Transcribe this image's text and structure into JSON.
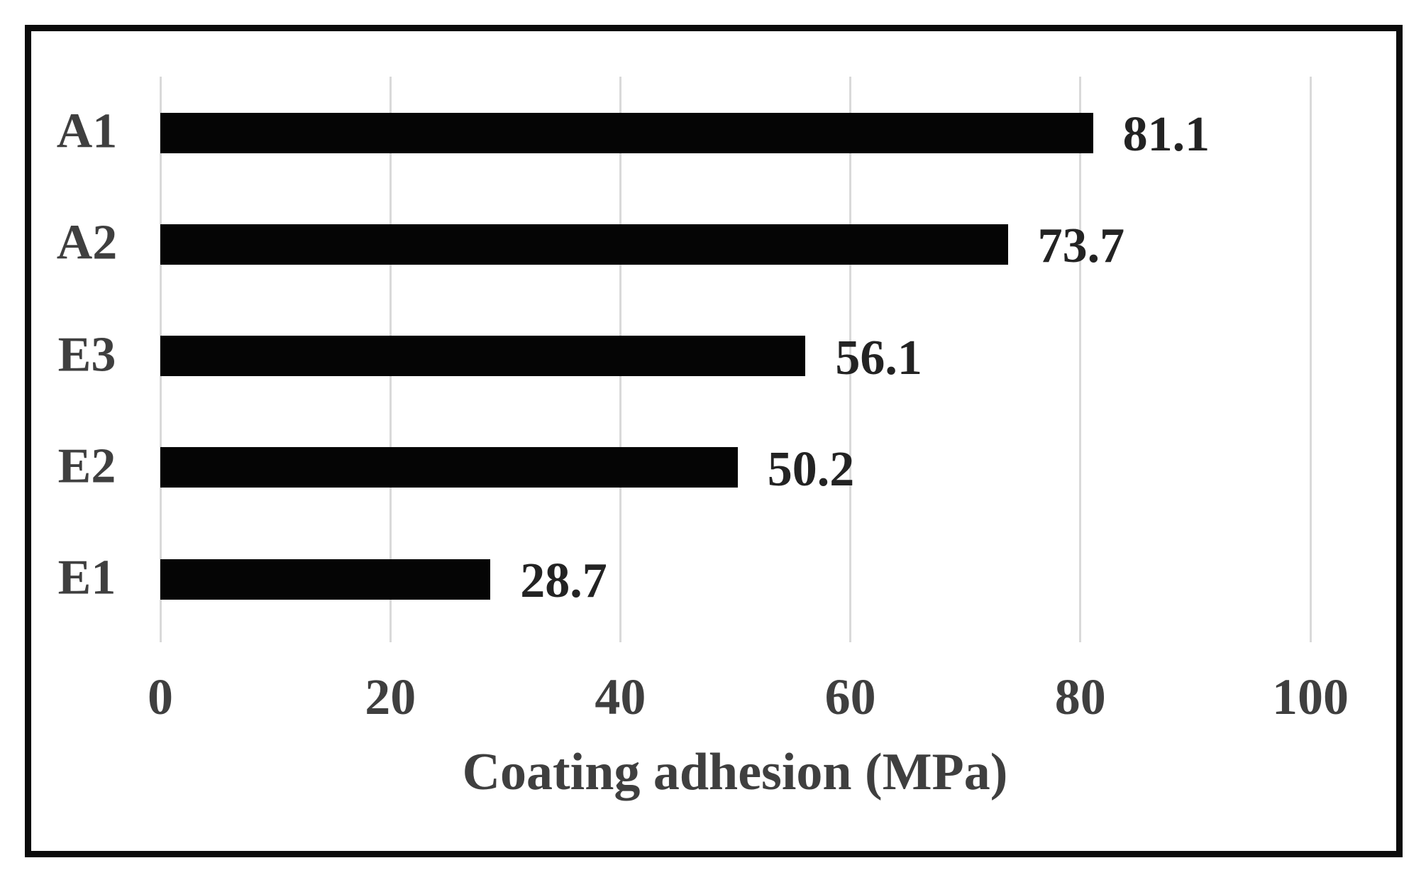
{
  "chart_data": {
    "type": "bar",
    "orientation": "horizontal",
    "title": "",
    "categories": [
      "A1",
      "A2",
      "E3",
      "E2",
      "E1"
    ],
    "values": [
      81.1,
      73.7,
      56.1,
      50.2,
      28.7
    ],
    "value_labels": [
      "81.1",
      "73.7",
      "56.1",
      "50.2",
      "28.7"
    ],
    "xlabel": "Coating adhesion (MPa)",
    "ylabel": "",
    "xticks": [
      0,
      20,
      40,
      60,
      80,
      100
    ],
    "xlim": [
      0,
      100
    ],
    "grid": "vertical-gridlines-on",
    "legend": "none",
    "bar_color": "#050505",
    "gridline_color": "#d9d9d9",
    "frame_color": "#0b0b0b",
    "axis_text_color": "#3f3f3f",
    "value_text_color": "#232323"
  }
}
